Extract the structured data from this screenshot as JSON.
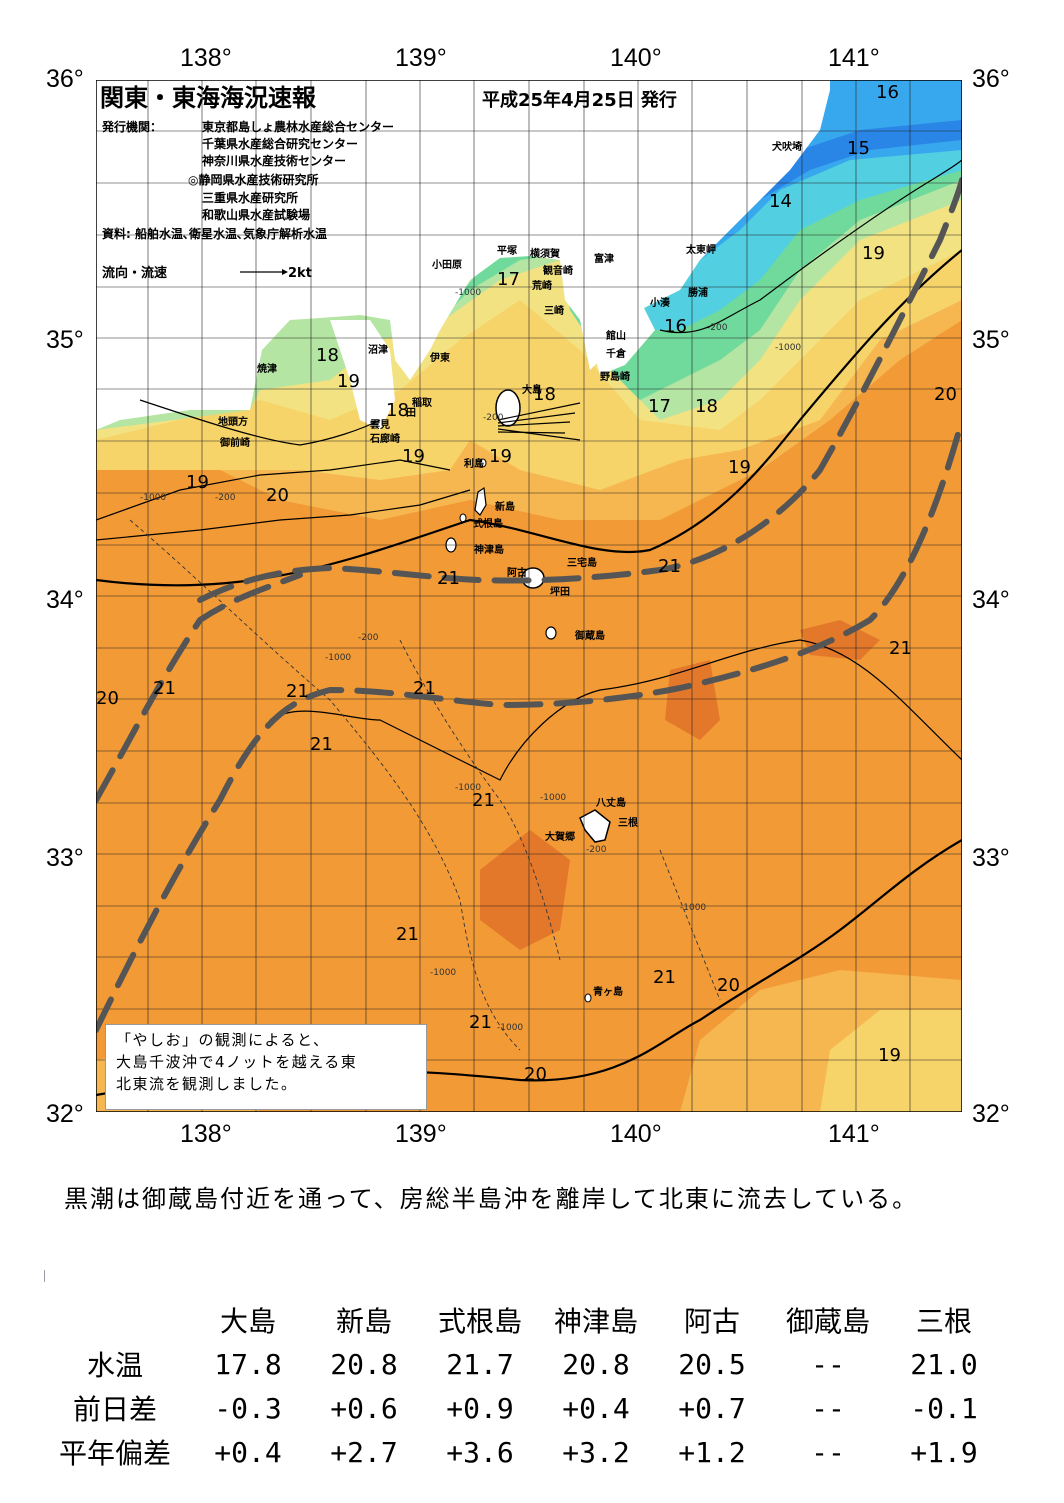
{
  "header": {
    "title": "関東・東海海況速報",
    "issue_date": "平成25年4月25日 発行",
    "issuer_label": "発行機関：",
    "issuers": [
      "東京都島しょ農林水産総合センター",
      "千葉県水産総合研究センター",
      "神奈川県水産技術センター",
      "◎静岡県水産技術研究所",
      "三重県水産研究所",
      "和歌山県水産試験場"
    ],
    "source": "資料: 船舶水温､衛星水温､気象庁解析水温",
    "flow_legend_label": "流向・流速",
    "flow_legend_value": "2kt"
  },
  "axes": {
    "lon_labels_top": [
      "138°",
      "139°",
      "140°",
      "141°"
    ],
    "lon_labels_bottom": [
      "138°",
      "139°",
      "140°",
      "141°"
    ],
    "lat_labels_left": [
      "36°",
      "35°",
      "34°",
      "33°",
      "32°"
    ],
    "lat_labels_right": [
      "36°",
      "35°",
      "34°",
      "33°",
      "32°"
    ]
  },
  "places": {
    "inubosaki": "犬吠埼",
    "taitozaki": "太東岬",
    "katsuura": "勝浦",
    "kominato": "小湊",
    "tomitsu": "富津",
    "tateyama": "館山",
    "chikura": "千倉",
    "nojimazaki": "野島崎",
    "yokosuka": "横須賀",
    "kannonzaki": "観音崎",
    "arasaki": "荒崎",
    "misaki": "三崎",
    "hiratsuka": "平塚",
    "odawara": "小田原",
    "numazu": "沼津",
    "ito": "伊東",
    "inatori": "稲取",
    "yaizu": "焼津",
    "chikyugaoka": "地頭方",
    "omaezaki": "御前崎",
    "kumomi": "雲見",
    "irozaki": "石廊崎",
    "ta": "田",
    "oshima": "大島",
    "toshima": "利島",
    "niijima": "新島",
    "shikinejima": "式根島",
    "kozushima": "神津島",
    "miyakejima": "三宅島",
    "ako": "阿古",
    "tsubota": "坪田",
    "mikurajima": "御蔵島",
    "hachijojima": "八丈島",
    "mitsune": "三根",
    "okago": "大賀郷",
    "aogashima": "青ヶ島"
  },
  "isotherm_labels": {
    "t16": "16",
    "t15": "15",
    "t14": "14",
    "t19": "19",
    "t17": "17",
    "t18": "18",
    "t20": "20",
    "t21": "21"
  },
  "depth_labels": {
    "d1000": "-1000",
    "d200": "-200"
  },
  "note": {
    "line1": "「やしお」の観測によると、",
    "line2": "大島千波沖で4ノットを越える東",
    "line3": "北東流を観測しました。"
  },
  "summary": "黒潮は御蔵島付近を通って、房総半島沖を離岸して北東に流去している。",
  "colors": {
    "warm21": "#f29a36",
    "warm_core": "#e4782a",
    "orange20": "#f6b650",
    "yellow19": "#f7d46a",
    "yellow18": "#f2e282",
    "lgreen": "#b4e5a2",
    "green17": "#70da9c",
    "cyan16": "#52cfe0",
    "blue15": "#38a8ee",
    "blue14": "#2a86e6",
    "kuroshio_axis": "#555555"
  },
  "table": {
    "columns": [
      "大島",
      "新島",
      "式根島",
      "神津島",
      "阿古",
      "御蔵島",
      "三根"
    ],
    "rows": [
      {
        "label": "水温",
        "values": [
          "17.8",
          "20.8",
          "21.7",
          "20.8",
          "20.5",
          "--",
          "21.0"
        ]
      },
      {
        "label": "前日差",
        "values": [
          "-0.3",
          "+0.6",
          "+0.9",
          "+0.4",
          "+0.7",
          "--",
          "-0.1"
        ]
      },
      {
        "label": "平年偏差",
        "values": [
          "+0.4",
          "+2.7",
          "+3.6",
          "+3.2",
          "+1.2",
          "--",
          "+1.9"
        ]
      }
    ]
  }
}
